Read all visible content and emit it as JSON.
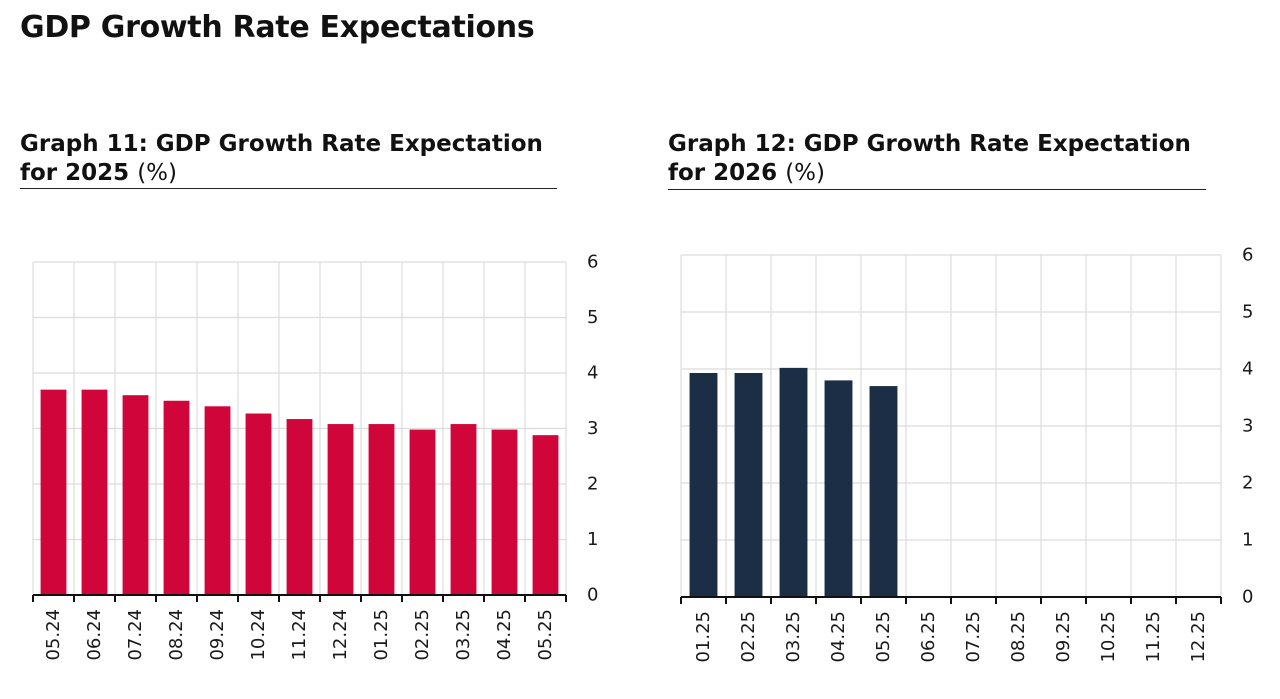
{
  "page_title": "GDP Growth Rate Expectations",
  "chart_data": [
    {
      "type": "bar",
      "title_main": "Graph 11: GDP Growth Rate Expectation for 2025",
      "title_unit": "(%)",
      "categories": [
        "05.24",
        "06.24",
        "07.24",
        "08.24",
        "09.24",
        "10.24",
        "11.24",
        "12.24",
        "01.25",
        "02.25",
        "03.25",
        "04.25",
        "05.25"
      ],
      "values": [
        3.7,
        3.7,
        3.6,
        3.5,
        3.4,
        3.27,
        3.17,
        3.08,
        3.08,
        2.98,
        3.08,
        2.98,
        2.88
      ],
      "ylim": [
        0,
        6
      ],
      "yticks": [
        "0",
        "1",
        "2",
        "3",
        "4",
        "5",
        "6"
      ],
      "y_axis_position": "right",
      "grid": true,
      "color": "#d0053a"
    },
    {
      "type": "bar",
      "title_main": "Graph 12: GDP Growth Rate Expectation for 2026",
      "title_unit": "(%)",
      "categories": [
        "01.25",
        "02.25",
        "03.25",
        "04.25",
        "05.25",
        "06.25",
        "07.25",
        "08.25",
        "09.25",
        "10.25",
        "11.25",
        "12.25"
      ],
      "values": [
        3.93,
        3.93,
        4.02,
        3.8,
        3.7,
        null,
        null,
        null,
        null,
        null,
        null,
        null
      ],
      "ylim": [
        0,
        6
      ],
      "yticks": [
        "0",
        "1",
        "2",
        "3",
        "4",
        "5",
        "6"
      ],
      "y_axis_position": "right",
      "grid": true,
      "color": "#1b2e45"
    }
  ]
}
